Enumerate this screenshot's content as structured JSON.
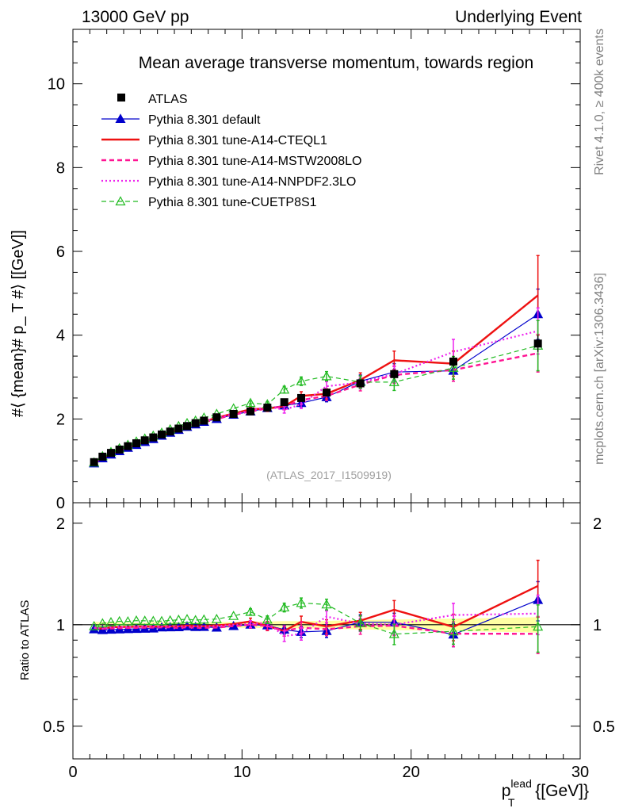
{
  "chart_data": {
    "type": "line",
    "header_left": "13000 GeV pp",
    "header_right": "Underlying Event",
    "title": "Mean average transverse momentum, towards region",
    "ylabel_main": "#⟨ {mean}# p_ T #⟩ [[GeV]]",
    "ylabel_ratio": "Ratio to ATLAS",
    "xlabel_base": "p",
    "xlabel_sup": "lead",
    "xlabel_sub": "T",
    "xlabel_unit": " {[GeV]}",
    "side_label_top": "Rivet 4.1.0, ≥ 400k events",
    "side_label_bottom": "mcplots.cern.ch [arXiv:1306.3436]",
    "analysis_id": "(ATLAS_2017_I1509919)",
    "xlim": [
      0,
      30
    ],
    "ylim_main": [
      0,
      11.3
    ],
    "ylim_ratio": [
      0.4,
      2.3
    ],
    "x_ticks": [
      0,
      10,
      20,
      30
    ],
    "x_tick_labels": [
      "0",
      "10",
      "20",
      "30"
    ],
    "y_ticks_main": [
      0,
      2,
      4,
      6,
      8,
      10
    ],
    "y_tick_labels_main": [
      "0",
      "2",
      "4",
      "6",
      "8",
      "10"
    ],
    "y_ticks_ratio": [
      0.5,
      1,
      2
    ],
    "y_tick_labels_ratio": [
      "0.5",
      "1",
      "2"
    ],
    "x": [
      1.25,
      1.75,
      2.25,
      2.75,
      3.25,
      3.75,
      4.25,
      4.75,
      5.25,
      5.75,
      6.25,
      6.75,
      7.25,
      7.75,
      8.5,
      9.5,
      10.5,
      11.5,
      12.5,
      13.5,
      15.0,
      17.0,
      19.0,
      22.5,
      27.5
    ],
    "series": [
      {
        "name": "ATLAS",
        "style": "data",
        "color": "#000000",
        "values": [
          0.97,
          1.1,
          1.19,
          1.27,
          1.35,
          1.42,
          1.49,
          1.56,
          1.63,
          1.7,
          1.77,
          1.83,
          1.9,
          1.96,
          2.04,
          2.12,
          2.18,
          2.27,
          2.4,
          2.5,
          2.63,
          2.85,
          3.07,
          3.37,
          3.8
        ],
        "errors": [
          0.02,
          0.02,
          0.02,
          0.02,
          0.02,
          0.02,
          0.02,
          0.03,
          0.03,
          0.03,
          0.03,
          0.03,
          0.03,
          0.03,
          0.04,
          0.04,
          0.05,
          0.05,
          0.06,
          0.06,
          0.07,
          0.09,
          0.11,
          0.14,
          0.2
        ]
      },
      {
        "name": "Pythia 8.301 default",
        "style": "solid-triangle",
        "color": "#0000cc",
        "values": [
          0.94,
          1.06,
          1.15,
          1.23,
          1.31,
          1.38,
          1.45,
          1.52,
          1.6,
          1.67,
          1.74,
          1.81,
          1.87,
          1.93,
          2.0,
          2.1,
          2.18,
          2.26,
          2.32,
          2.38,
          2.52,
          2.9,
          3.12,
          3.15,
          4.5
        ],
        "errors": [
          0.01,
          0.01,
          0.01,
          0.01,
          0.01,
          0.01,
          0.01,
          0.01,
          0.01,
          0.01,
          0.02,
          0.02,
          0.02,
          0.02,
          0.03,
          0.04,
          0.05,
          0.06,
          0.07,
          0.09,
          0.11,
          0.15,
          0.2,
          0.25,
          0.6
        ]
      },
      {
        "name": "Pythia 8.301 tune-A14-CTEQL1",
        "style": "thick-solid",
        "color": "#ee1111",
        "values": [
          0.95,
          1.07,
          1.17,
          1.25,
          1.33,
          1.4,
          1.47,
          1.54,
          1.61,
          1.68,
          1.75,
          1.82,
          1.88,
          1.94,
          2.03,
          2.13,
          2.23,
          2.25,
          2.3,
          2.55,
          2.6,
          2.93,
          3.4,
          3.32,
          4.95
        ],
        "errors": [
          0.01,
          0.01,
          0.01,
          0.01,
          0.01,
          0.01,
          0.01,
          0.01,
          0.01,
          0.01,
          0.02,
          0.02,
          0.02,
          0.02,
          0.03,
          0.04,
          0.05,
          0.07,
          0.08,
          0.1,
          0.12,
          0.17,
          0.22,
          0.3,
          0.95
        ]
      },
      {
        "name": "Pythia 8.301 tune-A14-MSTW2008LO",
        "style": "thick-dash",
        "color": "#ff1493",
        "values": [
          0.95,
          1.07,
          1.16,
          1.24,
          1.32,
          1.39,
          1.46,
          1.53,
          1.6,
          1.67,
          1.73,
          1.8,
          1.86,
          1.92,
          2.0,
          2.1,
          2.18,
          2.25,
          2.3,
          2.45,
          2.55,
          2.82,
          3.05,
          3.17,
          3.57
        ],
        "errors": [
          0.01,
          0.01,
          0.01,
          0.01,
          0.01,
          0.01,
          0.01,
          0.01,
          0.01,
          0.01,
          0.02,
          0.02,
          0.02,
          0.02,
          0.03,
          0.04,
          0.05,
          0.06,
          0.08,
          0.1,
          0.11,
          0.15,
          0.2,
          0.27,
          0.45
        ]
      },
      {
        "name": "Pythia 8.301 tune-A14-NNPDF2.3LO",
        "style": "dotted",
        "color": "#ee22ee",
        "values": [
          0.95,
          1.07,
          1.17,
          1.25,
          1.33,
          1.4,
          1.47,
          1.54,
          1.61,
          1.68,
          1.75,
          1.81,
          1.88,
          1.94,
          2.02,
          2.12,
          2.19,
          2.3,
          2.22,
          2.35,
          2.78,
          2.87,
          3.07,
          3.6,
          4.1
        ],
        "errors": [
          0.01,
          0.01,
          0.01,
          0.01,
          0.01,
          0.01,
          0.01,
          0.01,
          0.01,
          0.01,
          0.02,
          0.02,
          0.02,
          0.02,
          0.03,
          0.04,
          0.05,
          0.06,
          0.08,
          0.1,
          0.11,
          0.15,
          0.2,
          0.3,
          0.55
        ]
      },
      {
        "name": "Pythia 8.301 tune-CUETP8S1",
        "style": "dash-open-triangle",
        "color": "#22bb22",
        "values": [
          0.96,
          1.11,
          1.21,
          1.3,
          1.38,
          1.46,
          1.53,
          1.6,
          1.67,
          1.75,
          1.83,
          1.9,
          1.96,
          2.03,
          2.12,
          2.25,
          2.38,
          2.35,
          2.7,
          2.9,
          3.02,
          2.88,
          2.88,
          3.22,
          3.75
        ],
        "errors": [
          0.01,
          0.01,
          0.01,
          0.01,
          0.01,
          0.01,
          0.01,
          0.01,
          0.01,
          0.01,
          0.02,
          0.02,
          0.02,
          0.02,
          0.03,
          0.04,
          0.05,
          0.06,
          0.08,
          0.1,
          0.11,
          0.15,
          0.2,
          0.27,
          0.6
        ]
      }
    ]
  }
}
